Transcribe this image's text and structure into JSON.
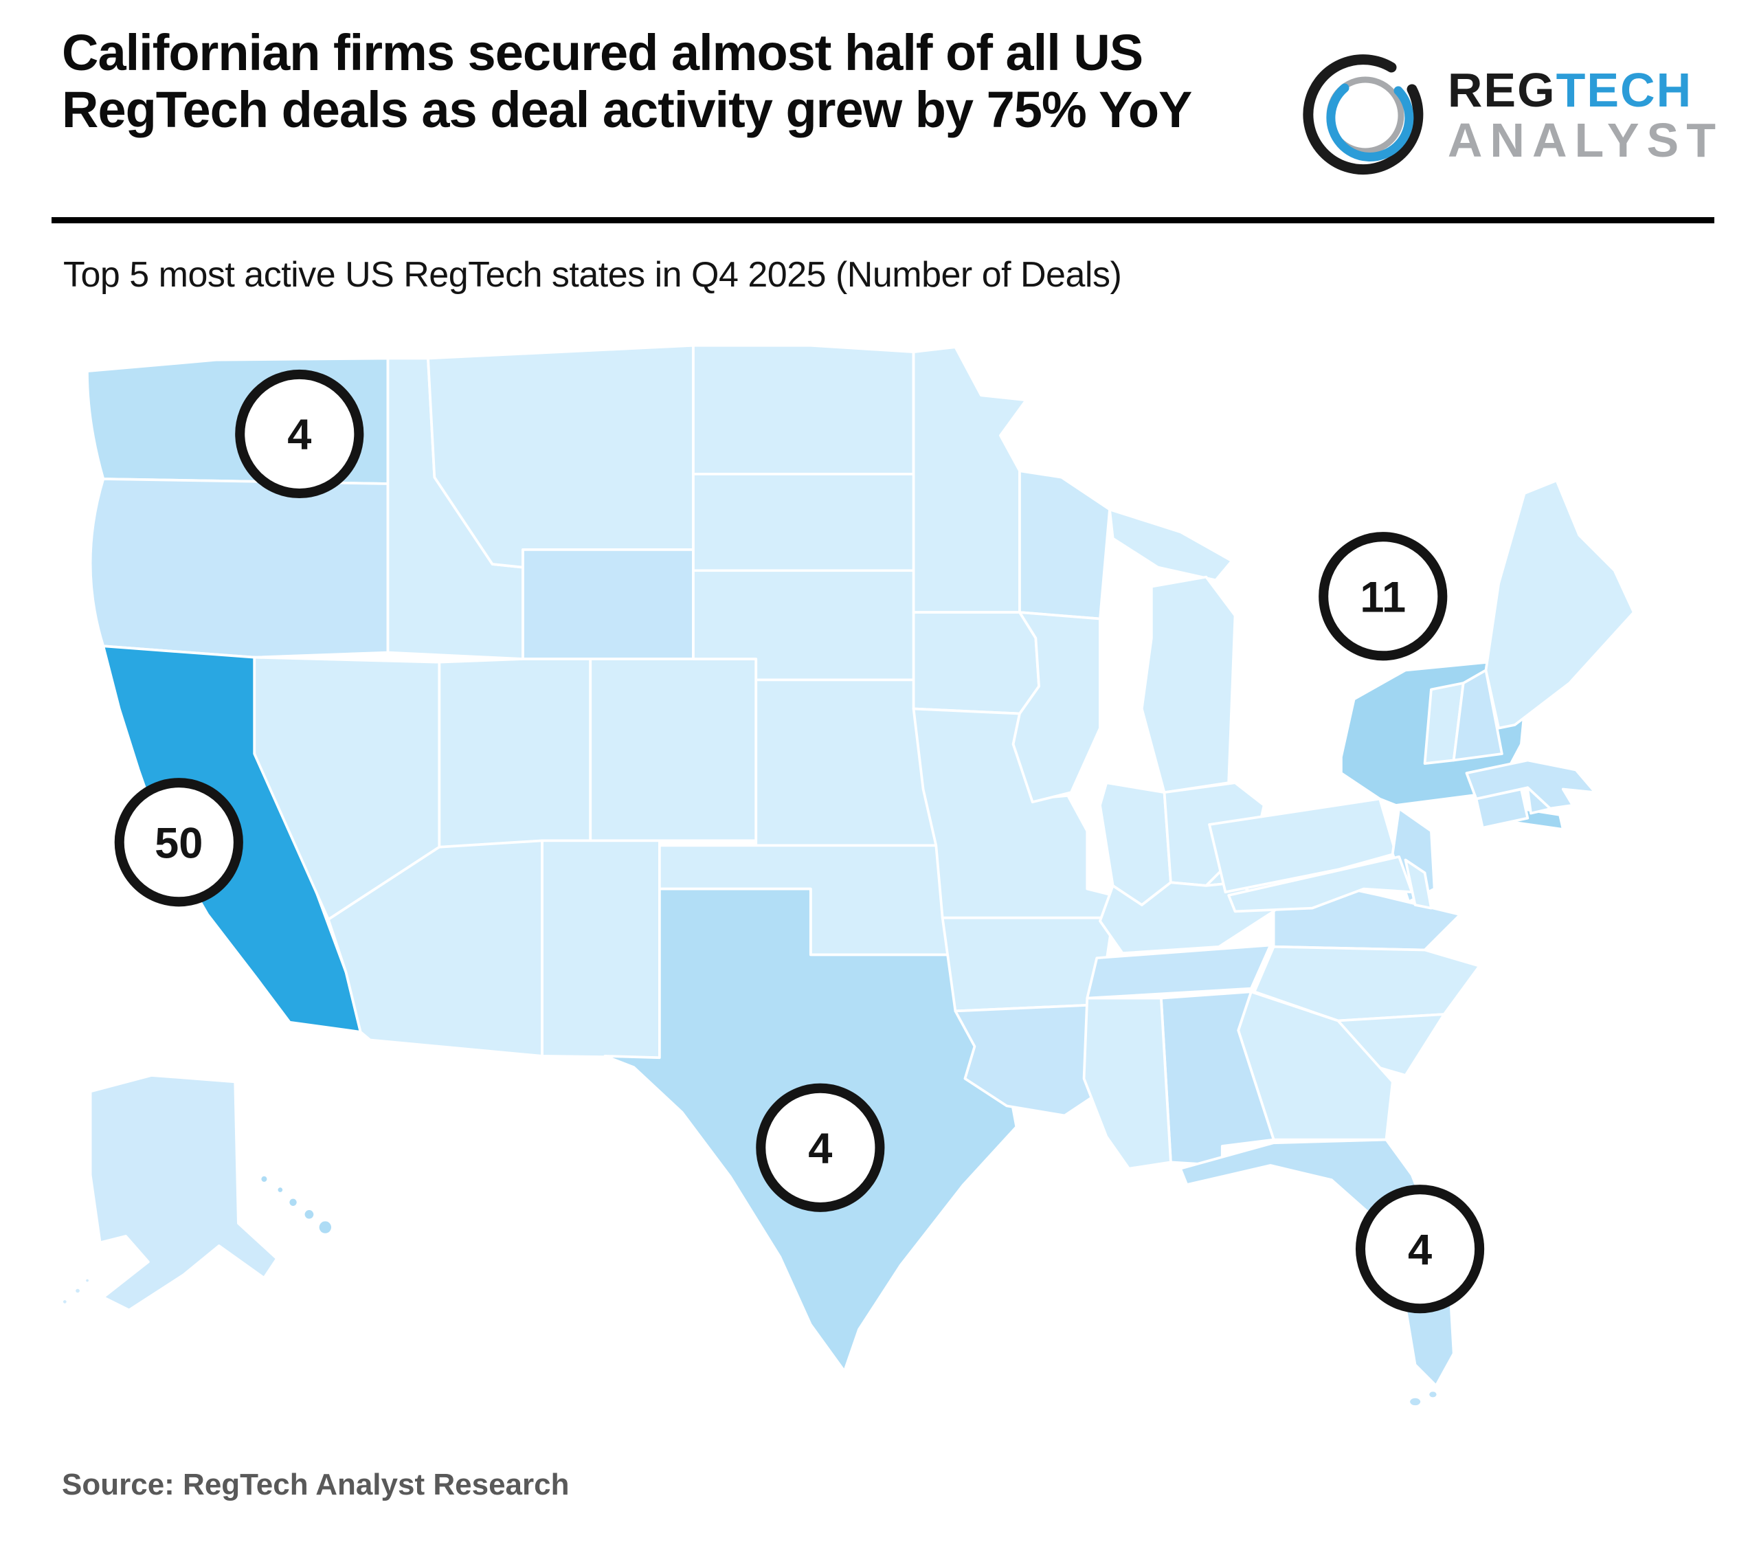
{
  "header": {
    "title_line1": "Californian firms secured almost half of all US",
    "title_line2": "RegTech deals as deal activity grew by 75% YoY"
  },
  "logo": {
    "reg": "REG",
    "tech": "TECH",
    "analyst": "ANALYST",
    "black": "#1b1b1b",
    "blue": "#2b9cd8",
    "gray": "#a7a9ac"
  },
  "subtitle": "Top 5 most active US RegTech states in Q4 2025 (Number of Deals)",
  "source": "Source: RegTech Analyst Research",
  "chart_data": {
    "type": "map",
    "subtype": "choropleth-with-markers",
    "region": "United States",
    "title": "Top 5 most active US RegTech states in Q4 2025 (Number of Deals)",
    "series": [
      {
        "state": "California",
        "deals": 50
      },
      {
        "state": "New York",
        "deals": 11
      },
      {
        "state": "Washington",
        "deals": 4
      },
      {
        "state": "Texas",
        "deals": 4
      },
      {
        "state": "Florida",
        "deals": 4
      }
    ],
    "legend": "none",
    "annotations": [
      "deal counts shown in white circular badges with black outline"
    ]
  },
  "map": {
    "base_fill": "#d5eefc",
    "state_fills": {
      "CA": "#29a7e2",
      "NY": "#a0d6f2",
      "WA": "#b9e1f7",
      "TX": "#b2def6",
      "FL": "#bde2f8",
      "OR": "#c6e6fa",
      "WY": "#c6e6fa",
      "NH": "#c6e6fa",
      "MA": "#c6e6fa",
      "CT": "#c6e6fa",
      "RI": "#c6e6fa",
      "NJ": "#bfe3f9",
      "VA": "#c6e6fa",
      "TN": "#c6e6fa",
      "AL": "#c0e3f9",
      "LA": "#c6e6fa",
      "WI": "#cdeafb",
      "AK": "#cfeafb",
      "HI": "#aedcf5"
    },
    "marker_style": {
      "radius": 37,
      "fill": "#ffffff",
      "stroke": "#141414",
      "stroke_width": 6,
      "font_size": 27,
      "text_color": "#141414"
    },
    "markers": [
      {
        "state": "Washington",
        "value": "4",
        "x": 152,
        "y": 69
      },
      {
        "state": "California",
        "value": "50",
        "x": 77,
        "y": 323
      },
      {
        "state": "New York",
        "value": "11",
        "x": 826,
        "y": 170
      },
      {
        "state": "Texas",
        "value": "4",
        "x": 476,
        "y": 513
      },
      {
        "state": "Florida",
        "value": "4",
        "x": 849,
        "y": 576
      }
    ]
  }
}
